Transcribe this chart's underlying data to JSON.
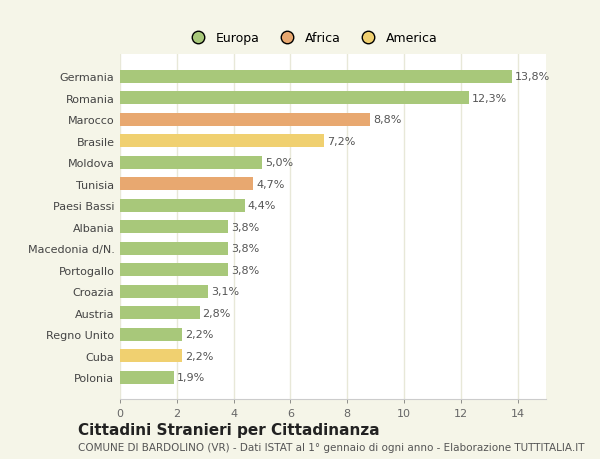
{
  "categories": [
    "Polonia",
    "Cuba",
    "Regno Unito",
    "Austria",
    "Croazia",
    "Portogallo",
    "Macedonia d/N.",
    "Albania",
    "Paesi Bassi",
    "Tunisia",
    "Moldova",
    "Brasile",
    "Marocco",
    "Romania",
    "Germania"
  ],
  "values": [
    1.9,
    2.2,
    2.2,
    2.8,
    3.1,
    3.8,
    3.8,
    3.8,
    4.4,
    4.7,
    5.0,
    7.2,
    8.8,
    12.3,
    13.8
  ],
  "bar_colors": [
    "#a8c87a",
    "#f0d070",
    "#a8c87a",
    "#a8c87a",
    "#a8c87a",
    "#a8c87a",
    "#a8c87a",
    "#a8c87a",
    "#a8c87a",
    "#e8a870",
    "#a8c87a",
    "#f0d070",
    "#e8a870",
    "#a8c87a",
    "#a8c87a"
  ],
  "labels": [
    "1,9%",
    "2,2%",
    "2,2%",
    "2,8%",
    "3,1%",
    "3,8%",
    "3,8%",
    "3,8%",
    "4,4%",
    "4,7%",
    "5,0%",
    "7,2%",
    "8,8%",
    "12,3%",
    "13,8%"
  ],
  "title": "Cittadini Stranieri per Cittadinanza",
  "subtitle": "COMUNE DI BARDOLINO (VR) - Dati ISTAT al 1° gennaio di ogni anno - Elaborazione TUTTITALIA.IT",
  "xlim": [
    0,
    15
  ],
  "xticks": [
    0,
    2,
    4,
    6,
    8,
    10,
    12,
    14
  ],
  "legend_labels": [
    "Europa",
    "Africa",
    "America"
  ],
  "legend_colors": [
    "#a8c87a",
    "#e8a870",
    "#f0d070"
  ],
  "background_color": "#f5f5e8",
  "plot_bg_color": "#ffffff",
  "grid_color": "#e8e8d8",
  "title_fontsize": 11,
  "subtitle_fontsize": 7.5,
  "label_fontsize": 8,
  "tick_fontsize": 8,
  "legend_fontsize": 9
}
